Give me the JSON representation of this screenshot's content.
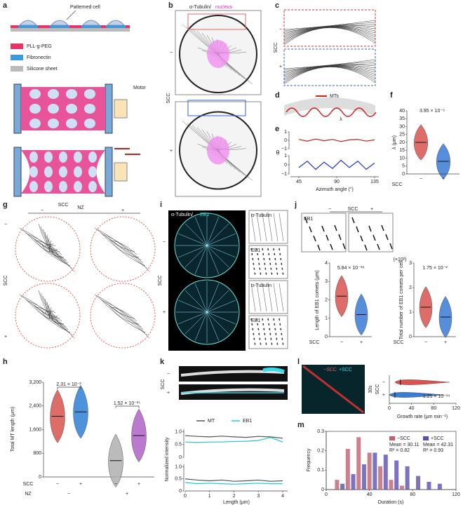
{
  "panels": {
    "a": {
      "label": "a",
      "patterned_cell": "Patterned cell",
      "legend": [
        "PLL-g-PEG",
        "Fibronectin",
        "Silicone sheet"
      ],
      "motor": "Motor",
      "scc": "SCC"
    },
    "b": {
      "label": "b",
      "stain": [
        "α-Tubulin/",
        "nucleus"
      ],
      "axis": "SCC",
      "signs": [
        "−",
        "+"
      ]
    },
    "c": {
      "label": "c",
      "axis": "SCC",
      "signs": [
        "−",
        "+"
      ]
    },
    "d": {
      "label": "d",
      "legend": "MTs",
      "lambda": "λ"
    },
    "g": {
      "label": "g",
      "top": "NZ",
      "left": "SCC",
      "signs_top": [
        "−",
        "+"
      ],
      "signs_left": [
        "−",
        "+"
      ]
    },
    "i": {
      "label": "i",
      "stain": [
        "α-Tubulin/",
        "EB1"
      ],
      "axis": "SCC",
      "signs": [
        "−",
        "+"
      ],
      "insets": [
        "α-Tubulin",
        "EB1",
        "α-Tubulin",
        "EB1"
      ]
    },
    "j": {
      "label": "j",
      "axis": "SCC",
      "signs": [
        "−",
        "+"
      ],
      "inset": "EB1"
    },
    "k": {
      "label": "k",
      "axis": "SCC",
      "signs": [
        "−",
        "+"
      ]
    },
    "l": {
      "label": "l",
      "legend": [
        "−SCC",
        "+SCC"
      ],
      "time": "30s"
    }
  },
  "chart_data": [
    {
      "panel": "e",
      "type": "line",
      "ylabel": "θ",
      "xlabel": "Azimuth angle (°)",
      "xlim": [
        35,
        140
      ],
      "xticks": [
        45,
        90,
        135
      ],
      "ylim": [
        -1,
        1
      ],
      "yticks": [
        1,
        0,
        {
          "value": -1,
          "label": "−1"
        }
      ],
      "x": [
        45,
        55,
        65,
        75,
        85,
        95,
        105,
        115,
        125,
        135
      ],
      "series": [
        {
          "color": "#b22222",
          "values": [
            0.1,
            -0.1,
            0.15,
            -0.05,
            0.1,
            -0.15,
            0.05,
            0.1,
            -0.1,
            0.05
          ]
        },
        {
          "color": "#2233cc",
          "values": [
            -0.3,
            0.4,
            -0.5,
            0.3,
            -0.4,
            0.5,
            -0.3,
            0.4,
            -0.5,
            0.2
          ]
        }
      ]
    },
    {
      "panel": "f",
      "type": "violin",
      "ylabel": "λ (μm)",
      "xlabel": "SCC",
      "categories": [
        "−",
        "+"
      ],
      "values": [
        20,
        8
      ],
      "colors": [
        "#d9534f",
        "#3a7bd5"
      ],
      "ylim": [
        0,
        40
      ],
      "yticks": [
        0,
        5,
        10,
        15,
        20,
        25,
        30,
        35,
        40
      ],
      "annotations": [
        "3.95 × 10⁻⁹"
      ]
    },
    {
      "panel": "h",
      "type": "violin",
      "ylabel": "Total MT length (μm)",
      "categories": [
        "−",
        "+",
        "−",
        "+"
      ],
      "xlabel": "SCC",
      "group_label": "NZ",
      "groups": [
        "−",
        "+"
      ],
      "values": [
        2050,
        2200,
        550,
        1400
      ],
      "colors": [
        "#d9534f",
        "#2f7fd8",
        "#b0b0b0",
        "#b062c8"
      ],
      "ylim": [
        0,
        3200
      ],
      "yticks": [
        0,
        800,
        {
          "value": 1600,
          "label": "1,600"
        },
        {
          "value": 2400,
          "label": "2,400"
        },
        {
          "value": 3200,
          "label": "3,200"
        }
      ],
      "annotations": [
        "2.31 × 10⁻²",
        "1.52 × 10⁻²⁵"
      ]
    },
    {
      "panel": "j",
      "type": "violin",
      "ylabel": "Length of EB1 comets (μm)",
      "xlabel": "SCC",
      "categories": [
        "−",
        "+"
      ],
      "values": [
        2.2,
        1.2
      ],
      "colors": [
        "#d9534f",
        "#3a7bd5"
      ],
      "ylim": [
        0,
        4
      ],
      "yticks": [
        0,
        1,
        2,
        3,
        4
      ],
      "annotations": [
        "5.84 × 10⁻³⁸"
      ]
    },
    {
      "type": "violin",
      "ylabel": "Total number of EB1 comets per cell",
      "unit": "(×10²)",
      "xlabel": "SCC",
      "categories": [
        "−",
        "+"
      ],
      "values": [
        1.2,
        0.8
      ],
      "colors": [
        "#d9534f",
        "#3a7bd5"
      ],
      "ylim": [
        0,
        3
      ],
      "yticks": [
        0,
        1,
        2,
        3
      ],
      "annotations": [
        "1.75 × 10⁻²"
      ]
    },
    {
      "panel": "k",
      "type": "line",
      "ylabel": "Normalized intensity",
      "xlabel": "Length (μm)",
      "xlim": [
        0,
        4.2
      ],
      "xticks": [
        0,
        1,
        2,
        3,
        4
      ],
      "ylim": [
        0,
        1.1
      ],
      "yticks": [
        0,
        0.5,
        {
          "value": 1,
          "label": "1.0"
        }
      ],
      "x": [
        0,
        0.5,
        1,
        1.5,
        2,
        2.5,
        3,
        3.5,
        4
      ],
      "series": [
        {
          "name": "MT",
          "color": "#555555",
          "values": [
            0.85,
            0.82,
            0.8,
            0.83,
            0.8,
            0.78,
            0.82,
            0.8,
            0.75
          ]
        },
        {
          "name": "EB1",
          "color": "#27c5d8",
          "values": [
            0.6,
            0.58,
            0.6,
            0.6,
            0.62,
            0.63,
            0.66,
            0.78,
            0.6
          ]
        }
      ],
      "series_lower": [
        {
          "color": "#555555",
          "values": [
            0.5,
            0.45,
            0.42,
            0.45,
            0.4,
            0.42,
            0.45,
            0.4,
            0.42
          ]
        },
        {
          "color": "#27c5d8",
          "values": [
            0.35,
            0.3,
            0.32,
            0.3,
            0.28,
            0.3,
            0.32,
            0.3,
            0.3
          ]
        }
      ]
    },
    {
      "panel": "l",
      "type": "hviolin",
      "xlabel": "Growth rate (μm min⁻¹)",
      "ylabel": "SCC",
      "categories": [
        "−",
        "+"
      ],
      "values": [
        20,
        10
      ],
      "colors": [
        "#d9534f",
        "#3a7bd5"
      ],
      "xlim": [
        0,
        120
      ],
      "xticks": [
        0,
        40,
        80,
        120
      ],
      "annotations": [
        "1.25 × 10⁻¹⁴"
      ]
    },
    {
      "panel": "m",
      "type": "histogram",
      "ylabel": "Frequency",
      "xlabel": "Duration (s)",
      "xlim": [
        0,
        120
      ],
      "xticks": [
        0,
        40,
        80,
        120
      ],
      "ylim": [
        0,
        0.3
      ],
      "yticks": [
        0,
        0.1,
        0.2,
        0.3
      ],
      "series": [
        {
          "name": "−SCC",
          "note": [
            "Mean = 30.11",
            "R² = 0.82"
          ],
          "color": "#c0606e",
          "x": [
            10,
            20,
            30,
            40,
            50,
            60,
            70
          ],
          "values": [
            0.05,
            0.21,
            0.27,
            0.19,
            0.12,
            0.05,
            0.02
          ]
        },
        {
          "name": "+SCC",
          "note": [
            "Mean = 42.31",
            "R² = 0.93"
          ],
          "color": "#5a4fb0",
          "x": [
            15,
            25,
            35,
            45,
            55,
            65,
            75,
            85,
            95,
            105
          ],
          "values": [
            0.03,
            0.08,
            0.13,
            0.19,
            0.18,
            0.15,
            0.12,
            0.07,
            0.04,
            0.03
          ]
        }
      ]
    }
  ]
}
